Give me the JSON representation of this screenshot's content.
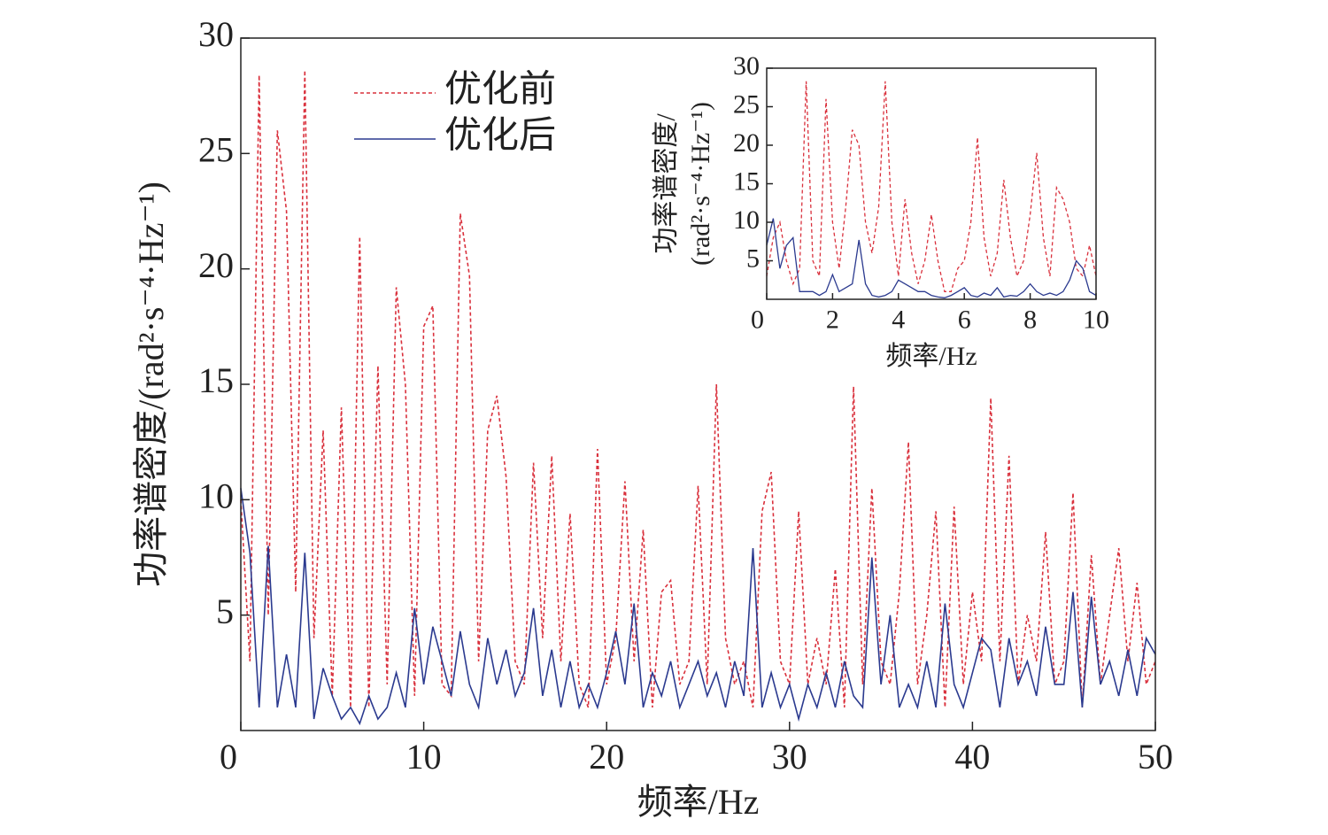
{
  "chart_data": [
    {
      "type": "line",
      "xlabel": "频率/Hz",
      "ylabel": "功率谱密度/(rad²·s⁻⁴·Hz⁻¹)",
      "xlim": [
        0,
        50
      ],
      "ylim": [
        0,
        30
      ],
      "xticks": [
        0,
        10,
        20,
        30,
        40,
        50
      ],
      "yticks": [
        5,
        10,
        15,
        20,
        25,
        30
      ],
      "legend": "upper left",
      "x": [
        0,
        0.5,
        1,
        1.5,
        2,
        2.5,
        3,
        3.5,
        4,
        4.5,
        5,
        5.5,
        6,
        6.5,
        7,
        7.5,
        8,
        8.5,
        9,
        9.5,
        10,
        10.5,
        11,
        11.5,
        12,
        12.5,
        13,
        13.5,
        14,
        14.5,
        15,
        15.5,
        16,
        16.5,
        17,
        17.5,
        18,
        18.5,
        19,
        19.5,
        20,
        20.5,
        21,
        21.5,
        22,
        22.5,
        23,
        23.5,
        24,
        24.5,
        25,
        25.5,
        26,
        26.5,
        27,
        27.5,
        28,
        28.5,
        29,
        29.5,
        30,
        30.5,
        31,
        31.5,
        32,
        32.5,
        33,
        33.5,
        34,
        34.5,
        35,
        35.5,
        36,
        36.5,
        37,
        37.5,
        38,
        38.5,
        39,
        39.5,
        40,
        40.5,
        41,
        41.5,
        42,
        42.5,
        43,
        43.5,
        44,
        44.5,
        45,
        45.5,
        46,
        46.5,
        47,
        47.5,
        48,
        48.5,
        49,
        49.5,
        50
      ],
      "series": [
        {
          "name": "优化前",
          "color": "#d9303c",
          "dash": true,
          "values": [
            10,
            3,
            28.4,
            5,
            26,
            22.5,
            6,
            28.6,
            4,
            13,
            1.5,
            14,
            1,
            21.4,
            1,
            15.8,
            2,
            19.2,
            15,
            1.5,
            17.5,
            18.4,
            2,
            1.5,
            22.4,
            19.7,
            3,
            13,
            14.5,
            11,
            3,
            2,
            11.6,
            4,
            11.9,
            3,
            9.4,
            2,
            1,
            12.2,
            2,
            4,
            10.8,
            3,
            8.7,
            1,
            6,
            6.5,
            2,
            3,
            10.6,
            2,
            15,
            4,
            2,
            3,
            1,
            9.5,
            11.2,
            3,
            2,
            9.5,
            2,
            4,
            2,
            7,
            1,
            14.9,
            2,
            10.5,
            3,
            2,
            6,
            12.5,
            2,
            5,
            9.5,
            1,
            9.7,
            2,
            6,
            3,
            14.4,
            3,
            11.9,
            2,
            5,
            3,
            8.6,
            2,
            3,
            10.3,
            1,
            7.6,
            2,
            5,
            7.9,
            3,
            6.4,
            2,
            3
          ]
        },
        {
          "name": "优化后",
          "color": "#2b3a8f",
          "dash": false,
          "values": [
            10.5,
            7.7,
            1,
            8,
            1,
            3.3,
            1,
            7.7,
            0.5,
            2.7,
            1.5,
            0.5,
            1,
            0.3,
            1.5,
            0.5,
            1,
            2.5,
            1,
            5.3,
            2,
            4.5,
            3,
            1.5,
            4.3,
            2,
            1,
            4,
            2,
            3.5,
            1.5,
            2.5,
            5.3,
            1.5,
            3.5,
            1,
            3,
            1,
            2,
            1,
            2.5,
            4.3,
            2,
            5.5,
            1,
            2.5,
            1.5,
            3,
            1,
            2,
            3,
            1.5,
            2.5,
            1,
            3,
            1.5,
            7.9,
            1,
            2.5,
            1,
            2,
            0.5,
            2,
            1,
            2.5,
            1,
            3,
            1.5,
            1,
            7.5,
            2,
            5,
            1,
            2,
            1,
            3,
            1,
            5.5,
            2,
            1,
            2.5,
            4,
            3.5,
            1,
            4,
            2,
            3,
            1.5,
            4.5,
            2,
            2,
            6,
            1,
            5.8,
            2,
            3,
            1.5,
            3.5,
            1.5,
            4,
            3.3
          ]
        }
      ]
    },
    {
      "type": "line",
      "xlabel": "频率/Hz",
      "ylabel": [
        "功率谱密度/",
        "(rad²·s⁻⁴·Hz⁻¹)"
      ],
      "xlim": [
        0,
        10
      ],
      "ylim": [
        0,
        30
      ],
      "xticks": [
        0,
        2,
        4,
        6,
        8,
        10
      ],
      "yticks": [
        5,
        10,
        15,
        20,
        25,
        30
      ],
      "x": [
        0,
        0.2,
        0.4,
        0.6,
        0.8,
        1,
        1.2,
        1.4,
        1.6,
        1.8,
        2,
        2.2,
        2.4,
        2.6,
        2.8,
        3,
        3.2,
        3.4,
        3.6,
        3.8,
        4,
        4.2,
        4.4,
        4.6,
        4.8,
        5,
        5.2,
        5.4,
        5.6,
        5.8,
        6,
        6.2,
        6.4,
        6.6,
        6.8,
        7,
        7.2,
        7.4,
        7.6,
        7.8,
        8,
        8.2,
        8.4,
        8.6,
        8.8,
        9,
        9.2,
        9.4,
        9.6,
        9.8,
        10
      ],
      "series": [
        {
          "color": "#d9303c",
          "dash": true,
          "values": [
            3,
            8,
            10,
            5,
            2,
            4,
            28.3,
            5,
            3,
            26,
            10,
            4,
            12,
            22,
            20,
            10,
            6,
            12,
            28.3,
            10,
            3,
            13,
            6,
            2,
            5,
            11,
            5,
            1,
            1,
            4,
            5,
            10,
            21,
            8,
            3,
            6,
            15.5,
            8,
            3,
            5,
            11,
            19,
            8,
            3,
            14.5,
            13,
            10,
            4,
            3,
            7,
            3
          ]
        },
        {
          "color": "#2b3a8f",
          "dash": false,
          "values": [
            7,
            10.5,
            4,
            7,
            8,
            1,
            1,
            1,
            0.5,
            1,
            3.2,
            1,
            1.5,
            2,
            7.7,
            2,
            0.5,
            0.3,
            0.5,
            1,
            2.5,
            2,
            1.5,
            1,
            1,
            0.5,
            0.3,
            0.2,
            0.5,
            1,
            1.5,
            0.5,
            0.3,
            0.8,
            0.5,
            1.5,
            0.3,
            0.5,
            0.4,
            1,
            2,
            1,
            0.5,
            0.8,
            0.5,
            1,
            2.5,
            5,
            4,
            1,
            0.5
          ]
        }
      ]
    }
  ]
}
